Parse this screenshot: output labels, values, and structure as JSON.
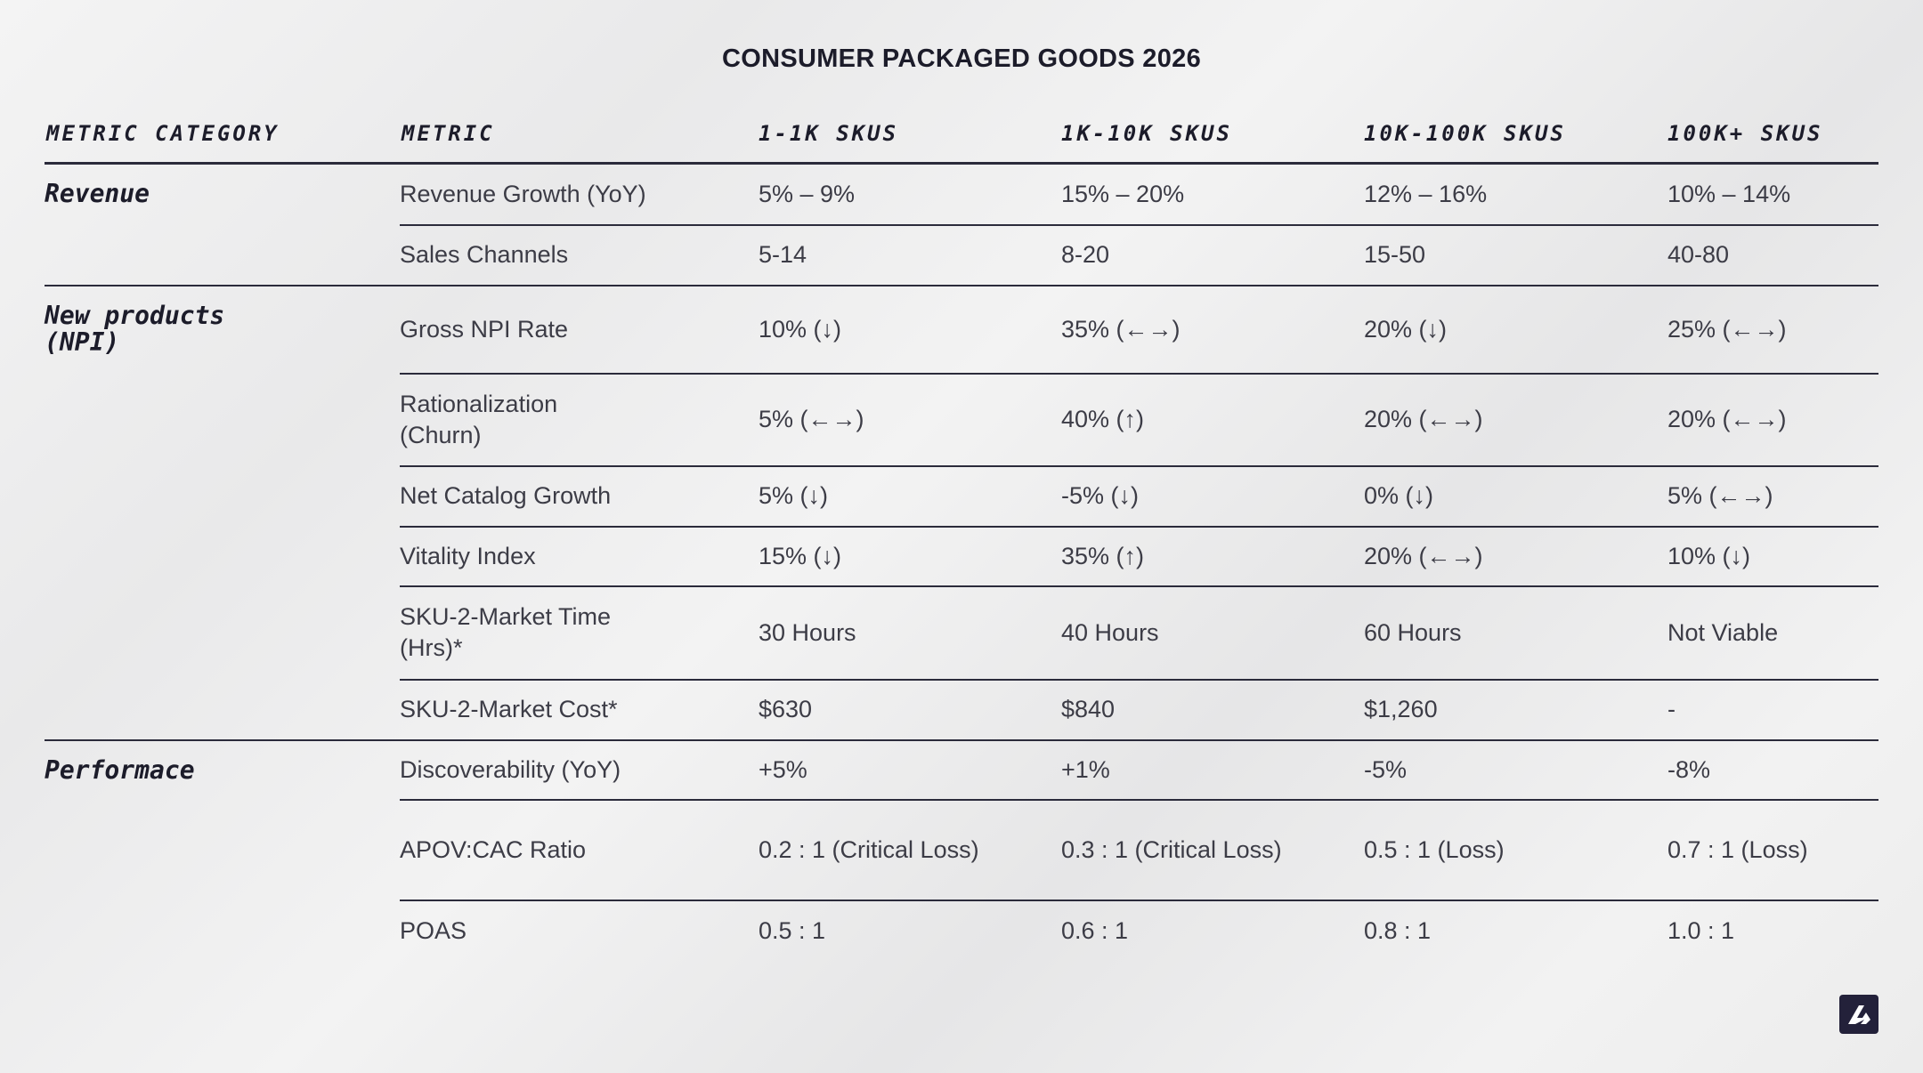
{
  "title": "CONSUMER PACKAGED GOODS 2026",
  "headers": [
    "Metric Category",
    "Metric",
    "1-1K SKUs",
    "1K-10K SKUs",
    "10K-100K SKUs",
    "100K+ SKUs"
  ],
  "groups": [
    {
      "category": "Revenue",
      "rows": [
        {
          "metric": "Revenue Growth (YoY)",
          "values": [
            "5% – 9%",
            "15% – 20%",
            "12% – 16%",
            "10% – 14%"
          ]
        },
        {
          "metric": "Sales Channels",
          "values": [
            "5-14",
            "8-20",
            "15-50",
            "40-80"
          ]
        }
      ]
    },
    {
      "category": "New products (NPI)",
      "rows": [
        {
          "metric": "Gross NPI Rate",
          "values": [
            "10% (↓)",
            "35% (←→)",
            "20% (↓)",
            "25% (←→)"
          ]
        },
        {
          "metric": "Rationalization (Churn)",
          "values": [
            "5% (←→)",
            "40% (↑)",
            "20% (←→)",
            "20% (←→)"
          ]
        },
        {
          "metric": "Net Catalog Growth",
          "values": [
            "5% (↓)",
            "-5% (↓)",
            "0% (↓)",
            "5% (←→)"
          ]
        },
        {
          "metric": "Vitality Index",
          "values": [
            "15% (↓)",
            "35% (↑)",
            "20% (←→)",
            "10% (↓)"
          ]
        },
        {
          "metric": "SKU-2-Market Time (Hrs)*",
          "values": [
            "30 Hours",
            "40 Hours",
            "60 Hours",
            "Not Viable"
          ]
        },
        {
          "metric": "SKU-2-Market Cost*",
          "values": [
            "$630",
            "$840",
            "$1,260",
            "-"
          ]
        }
      ]
    },
    {
      "category": "Performace",
      "rows": [
        {
          "metric": "Discoverability (YoY)",
          "values": [
            "+5%",
            "+1%",
            "-5%",
            "-8%"
          ]
        },
        {
          "metric": "APOV:CAC Ratio",
          "values": [
            "0.2 : 1 (Critical Loss)",
            "0.3 : 1 (Critical Loss)",
            "0.5 : 1 (Loss)",
            "0.7 : 1 (Loss)"
          ]
        },
        {
          "metric": "POAS",
          "values": [
            "0.5 : 1",
            "0.6 : 1",
            "0.8 : 1",
            "1.0 : 1"
          ]
        }
      ]
    }
  ]
}
